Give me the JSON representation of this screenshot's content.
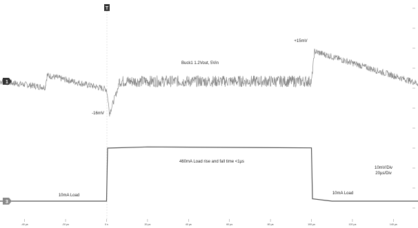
{
  "chart_data": {
    "type": "line",
    "title": "",
    "xlabel": "",
    "ylabel": "",
    "grid": false,
    "x_ticks": [
      "-40 µs",
      "-20 µs",
      "0 s",
      "20 µs",
      "40 µs",
      "60 µs",
      "80 µs",
      "100 µs",
      "120 µs",
      "140 µs"
    ],
    "x_range_us": [
      -52,
      152
    ],
    "scale_note_line1": "10mV/Div",
    "scale_note_line2": "20µs/Div",
    "channel_markers": [
      "1",
      "3"
    ],
    "trigger_marker": "T",
    "series": [
      {
        "name": "",
        "unit": "mV",
        "segments": [
          {
            "x": [
              -52,
              -30
            ],
            "y": [
              0,
              -3
            ]
          },
          {
            "x": [
              -30,
              -29
            ],
            "y": [
              -3,
              3
            ]
          },
          {
            "x": [
              -29,
              0
            ],
            "y": [
              3,
              -4
            ]
          },
          {
            "x": [
              0,
              1.5
            ],
            "y": [
              -4,
              -16
            ]
          },
          {
            "x": [
              1.5,
              6
            ],
            "y": [
              -16,
              -2
            ]
          },
          {
            "x": [
              6,
              100
            ],
            "y": [
              0,
              0
            ]
          },
          {
            "x": [
              100,
              101.5
            ],
            "y": [
              0,
              15
            ]
          },
          {
            "x": [
              101.5,
              152
            ],
            "y": [
              15,
              -1
            ]
          }
        ],
        "noise_mv": 1.6
      },
      {
        "name": "",
        "unit": "mA",
        "points": [
          [
            -52,
            10
          ],
          [
            0,
            10
          ],
          [
            0.5,
            460
          ],
          [
            20,
            470
          ],
          [
            100,
            462
          ],
          [
            100.5,
            30
          ],
          [
            110,
            10
          ],
          [
            152,
            10
          ]
        ]
      }
    ],
    "annotations": {
      "voltage_label": "Buck1 1.2Vout, 5Vin",
      "pos_peak": "+15mV",
      "neg_peak": "-16mV",
      "load_step": "460mA Load rise and fall time <1µs",
      "load_low_left": "10mA Load",
      "load_low_right": "10mA Load"
    }
  }
}
